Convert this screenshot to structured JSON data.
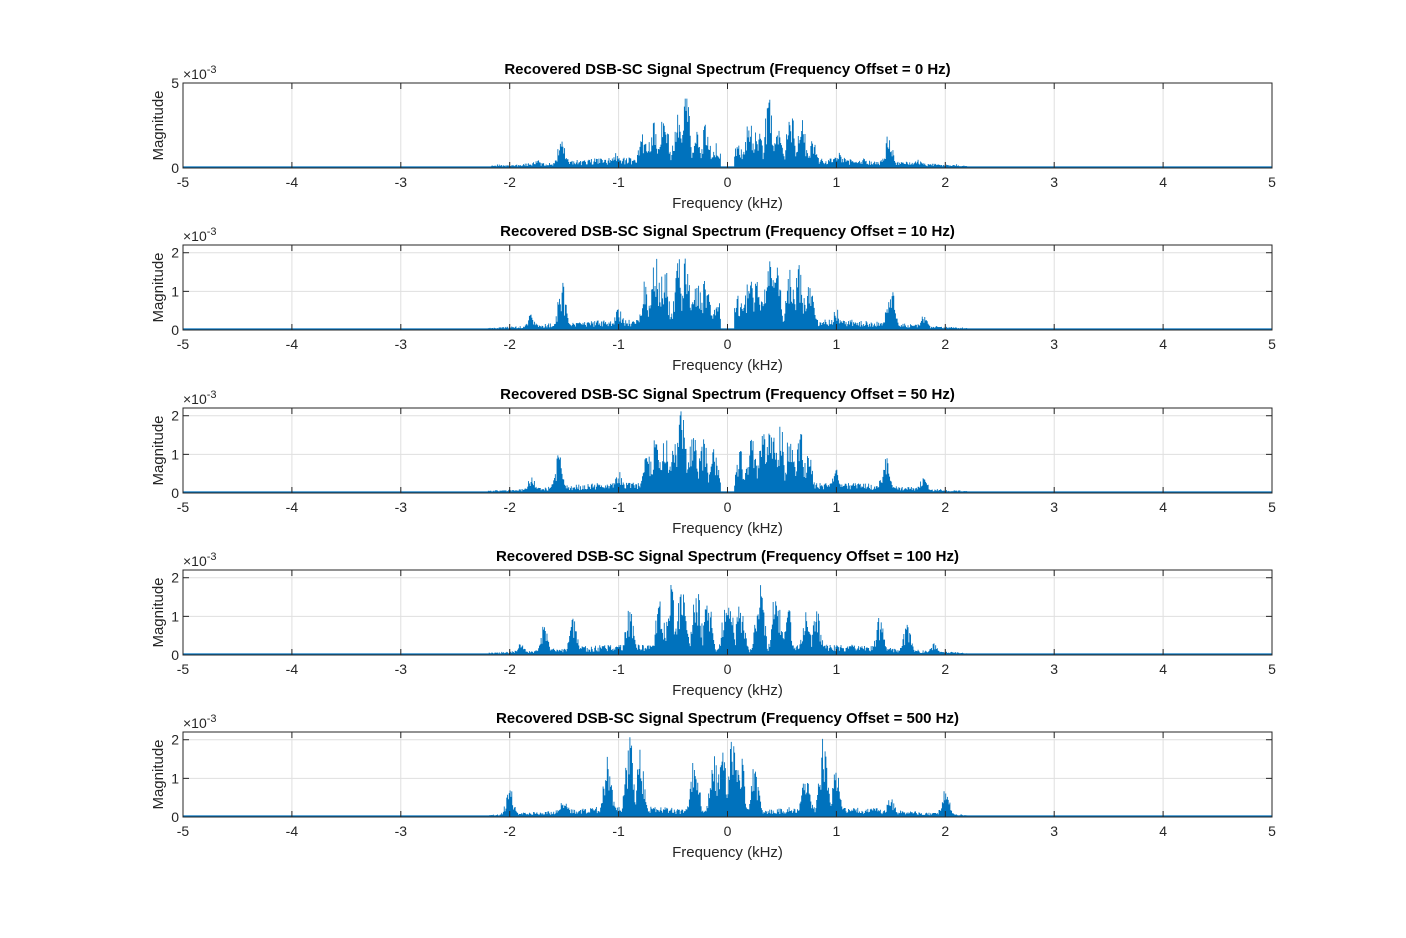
{
  "figure": {
    "panel_count": 5
  },
  "chart_data": [
    {
      "type": "line",
      "title": "Recovered DSB-SC Signal Spectrum (Frequency Offset = 0 Hz)",
      "xlabel": "Frequency (kHz)",
      "ylabel": "Magnitude",
      "xlim": [
        -5,
        5
      ],
      "ylim": [
        0,
        5
      ],
      "y_exponent_label": "×10",
      "y_exponent": "-3",
      "xticks": [
        "-5",
        "-4",
        "-3",
        "-2",
        "-1",
        "0",
        "1",
        "2",
        "3",
        "4",
        "5"
      ],
      "yticks": [
        {
          "v": 0,
          "t": "0"
        },
        {
          "v": 5,
          "t": "5"
        }
      ],
      "grid": true,
      "color": "#0072BD",
      "offset_hz": 0,
      "peaks": [
        {
          "x": 0.1,
          "y": 1.6
        },
        {
          "x": 0.2,
          "y": 3.0
        },
        {
          "x": 0.28,
          "y": 2.6
        },
        {
          "x": 0.38,
          "y": 4.4
        },
        {
          "x": 0.46,
          "y": 3.2
        },
        {
          "x": 0.58,
          "y": 3.8
        },
        {
          "x": 0.68,
          "y": 3.0
        },
        {
          "x": 0.78,
          "y": 2.0
        },
        {
          "x": 1.02,
          "y": 1.0
        },
        {
          "x": 1.48,
          "y": 2.0
        },
        {
          "x": 1.75,
          "y": 0.5
        },
        {
          "x": 2.1,
          "y": 0.2
        },
        {
          "x": -0.1,
          "y": 1.6
        },
        {
          "x": -0.2,
          "y": 3.0
        },
        {
          "x": -0.28,
          "y": 2.6
        },
        {
          "x": -0.38,
          "y": 4.4
        },
        {
          "x": -0.46,
          "y": 3.2
        },
        {
          "x": -0.58,
          "y": 3.8
        },
        {
          "x": -0.68,
          "y": 3.0
        },
        {
          "x": -0.78,
          "y": 2.0
        },
        {
          "x": -1.02,
          "y": 1.0
        },
        {
          "x": -1.52,
          "y": 2.0
        },
        {
          "x": -1.75,
          "y": 0.5
        },
        {
          "x": -2.1,
          "y": 0.2
        }
      ]
    },
    {
      "type": "line",
      "title": "Recovered DSB-SC Signal Spectrum (Frequency Offset = 10 Hz)",
      "xlabel": "Frequency (kHz)",
      "ylabel": "Magnitude",
      "xlim": [
        -5,
        5
      ],
      "ylim": [
        0,
        2.2
      ],
      "y_exponent_label": "×10",
      "y_exponent": "-3",
      "xticks": [
        "-5",
        "-4",
        "-3",
        "-2",
        "-1",
        "0",
        "1",
        "2",
        "3",
        "4",
        "5"
      ],
      "yticks": [
        {
          "v": 0,
          "t": "0"
        },
        {
          "v": 1,
          "t": "1"
        },
        {
          "v": 2,
          "t": "2"
        }
      ],
      "grid": true,
      "color": "#0072BD",
      "offset_hz": 10,
      "peaks": [
        {
          "x": 0.1,
          "y": 1.0
        },
        {
          "x": 0.2,
          "y": 1.6
        },
        {
          "x": 0.28,
          "y": 1.5
        },
        {
          "x": 0.38,
          "y": 2.2
        },
        {
          "x": 0.45,
          "y": 2.0
        },
        {
          "x": 0.58,
          "y": 1.8
        },
        {
          "x": 0.66,
          "y": 2.0
        },
        {
          "x": 0.76,
          "y": 1.3
        },
        {
          "x": 1.0,
          "y": 0.6
        },
        {
          "x": 1.5,
          "y": 1.3
        },
        {
          "x": 1.8,
          "y": 0.4
        },
        {
          "x": -0.1,
          "y": 1.0
        },
        {
          "x": -0.2,
          "y": 1.6
        },
        {
          "x": -0.28,
          "y": 1.5
        },
        {
          "x": -0.38,
          "y": 2.2
        },
        {
          "x": -0.45,
          "y": 2.0
        },
        {
          "x": -0.58,
          "y": 1.8
        },
        {
          "x": -0.66,
          "y": 2.0
        },
        {
          "x": -0.76,
          "y": 1.3
        },
        {
          "x": -1.0,
          "y": 0.6
        },
        {
          "x": -1.52,
          "y": 1.3
        },
        {
          "x": -1.8,
          "y": 0.4
        }
      ]
    },
    {
      "type": "line",
      "title": "Recovered DSB-SC Signal Spectrum (Frequency Offset = 50 Hz)",
      "xlabel": "Frequency (kHz)",
      "ylabel": "Magnitude",
      "xlim": [
        -5,
        5
      ],
      "ylim": [
        0,
        2.2
      ],
      "y_exponent_label": "×10",
      "y_exponent": "-3",
      "xticks": [
        "-5",
        "-4",
        "-3",
        "-2",
        "-1",
        "0",
        "1",
        "2",
        "3",
        "4",
        "5"
      ],
      "yticks": [
        {
          "v": 0,
          "t": "0"
        },
        {
          "v": 1,
          "t": "1"
        },
        {
          "v": 2,
          "t": "2"
        }
      ],
      "grid": true,
      "color": "#0072BD",
      "offset_hz": 50,
      "peaks": [
        {
          "x": 0.12,
          "y": 1.2
        },
        {
          "x": 0.22,
          "y": 1.6
        },
        {
          "x": 0.32,
          "y": 1.8
        },
        {
          "x": 0.4,
          "y": 2.2
        },
        {
          "x": 0.48,
          "y": 2.0
        },
        {
          "x": 0.58,
          "y": 1.9
        },
        {
          "x": 0.66,
          "y": 1.8
        },
        {
          "x": 0.74,
          "y": 1.2
        },
        {
          "x": 1.0,
          "y": 0.6
        },
        {
          "x": 1.45,
          "y": 1.0
        },
        {
          "x": 1.8,
          "y": 0.4
        },
        {
          "x": -0.12,
          "y": 1.2
        },
        {
          "x": -0.22,
          "y": 1.6
        },
        {
          "x": -0.32,
          "y": 1.8
        },
        {
          "x": -0.42,
          "y": 2.2
        },
        {
          "x": -0.48,
          "y": 2.0
        },
        {
          "x": -0.58,
          "y": 1.9
        },
        {
          "x": -0.66,
          "y": 1.8
        },
        {
          "x": -0.74,
          "y": 1.2
        },
        {
          "x": -1.0,
          "y": 0.6
        },
        {
          "x": -1.55,
          "y": 1.0
        },
        {
          "x": -1.8,
          "y": 0.4
        }
      ]
    },
    {
      "type": "line",
      "title": "Recovered DSB-SC Signal Spectrum (Frequency Offset = 100 Hz)",
      "xlabel": "Frequency (kHz)",
      "ylabel": "Magnitude",
      "xlim": [
        -5,
        5
      ],
      "ylim": [
        0,
        2.2
      ],
      "y_exponent_label": "×10",
      "y_exponent": "-3",
      "xticks": [
        "-5",
        "-4",
        "-3",
        "-2",
        "-1",
        "0",
        "1",
        "2",
        "3",
        "4",
        "5"
      ],
      "yticks": [
        {
          "v": 0,
          "t": "0"
        },
        {
          "v": 1,
          "t": "1"
        },
        {
          "v": 2,
          "t": "2"
        }
      ],
      "grid": true,
      "color": "#0072BD",
      "offset_hz": 100,
      "peaks": [
        {
          "x": 0.02,
          "y": 1.4
        },
        {
          "x": 0.12,
          "y": 1.6
        },
        {
          "x": 0.3,
          "y": 2.2
        },
        {
          "x": 0.45,
          "y": 2.0
        },
        {
          "x": 0.55,
          "y": 1.4
        },
        {
          "x": 0.72,
          "y": 1.2
        },
        {
          "x": 0.82,
          "y": 1.2
        },
        {
          "x": 1.4,
          "y": 1.0
        },
        {
          "x": 1.65,
          "y": 0.8
        },
        {
          "x": 1.9,
          "y": 0.3
        },
        {
          "x": -0.02,
          "y": 1.4
        },
        {
          "x": -0.18,
          "y": 1.6
        },
        {
          "x": -0.28,
          "y": 2.0
        },
        {
          "x": -0.42,
          "y": 2.2
        },
        {
          "x": -0.52,
          "y": 2.0
        },
        {
          "x": -0.62,
          "y": 1.6
        },
        {
          "x": -0.9,
          "y": 1.3
        },
        {
          "x": -1.42,
          "y": 1.0
        },
        {
          "x": -1.68,
          "y": 0.8
        },
        {
          "x": -1.9,
          "y": 0.3
        }
      ]
    },
    {
      "type": "line",
      "title": "Recovered DSB-SC Signal Spectrum (Frequency Offset = 500 Hz)",
      "xlabel": "Frequency (kHz)",
      "ylabel": "Magnitude",
      "xlim": [
        -5,
        5
      ],
      "ylim": [
        0,
        2.2
      ],
      "y_exponent_label": "×10",
      "y_exponent": "-3",
      "xticks": [
        "-5",
        "-4",
        "-3",
        "-2",
        "-1",
        "0",
        "1",
        "2",
        "3",
        "4",
        "5"
      ],
      "yticks": [
        {
          "v": 0,
          "t": "0"
        },
        {
          "v": 1,
          "t": "1"
        },
        {
          "v": 2,
          "t": "2"
        }
      ],
      "grid": true,
      "color": "#0072BD",
      "offset_hz": 500,
      "peaks": [
        {
          "x": -2.0,
          "y": 0.8
        },
        {
          "x": -1.1,
          "y": 1.6
        },
        {
          "x": -0.9,
          "y": 2.2
        },
        {
          "x": -0.8,
          "y": 1.8
        },
        {
          "x": -0.3,
          "y": 1.7
        },
        {
          "x": -0.12,
          "y": 1.9
        },
        {
          "x": -0.05,
          "y": 2.2
        },
        {
          "x": 0.05,
          "y": 2.2
        },
        {
          "x": 0.12,
          "y": 1.8
        },
        {
          "x": 0.25,
          "y": 1.4
        },
        {
          "x": 0.72,
          "y": 1.5
        },
        {
          "x": 0.88,
          "y": 2.2
        },
        {
          "x": 1.0,
          "y": 1.4
        },
        {
          "x": 2.0,
          "y": 0.8
        },
        {
          "x": -1.5,
          "y": 0.5
        },
        {
          "x": 1.5,
          "y": 0.5
        }
      ]
    }
  ]
}
